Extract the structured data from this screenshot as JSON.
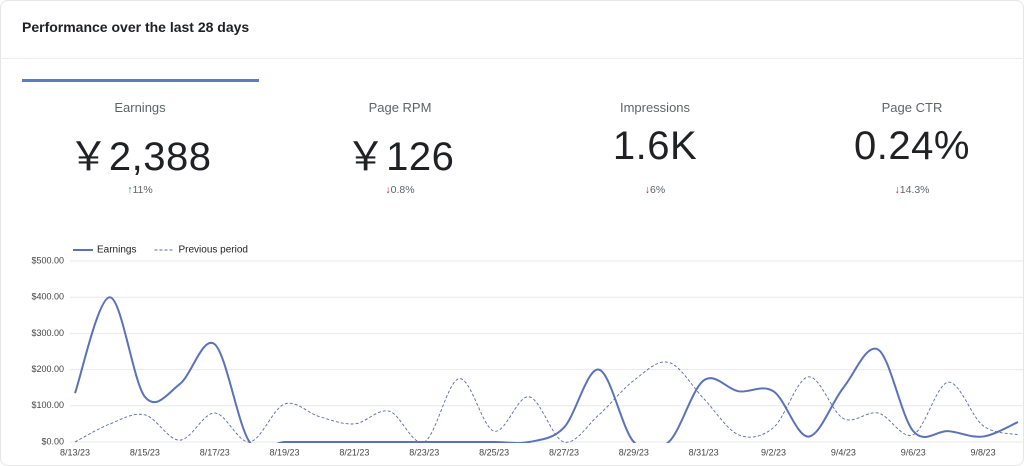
{
  "header": {
    "title": "Performance over the last 28 days"
  },
  "metrics": [
    {
      "label": "Earnings",
      "value": "￥2,388",
      "change": "11%",
      "trend": "up"
    },
    {
      "label": "Page RPM",
      "value": "￥126",
      "change": "0.8%",
      "trend": "down"
    },
    {
      "label": "Impressions",
      "value": "1.6K",
      "change": "6%",
      "trend": "down"
    },
    {
      "label": "Page CTR",
      "value": "0.24%",
      "change": "14.3%",
      "trend": "down"
    }
  ],
  "chart_data": {
    "type": "line",
    "categories": [
      "8/13/23",
      null,
      "8/15/23",
      null,
      "8/17/23",
      null,
      "8/19/23",
      null,
      "8/21/23",
      null,
      "8/23/23",
      null,
      "8/25/23",
      null,
      "8/27/23",
      null,
      "8/29/23",
      null,
      "8/31/23",
      null,
      "9/2/23",
      null,
      "9/4/23",
      null,
      "9/6/23",
      null,
      "9/8/23",
      null
    ],
    "series": [
      {
        "name": "Earnings",
        "color": "#5c72b8",
        "dashed": false,
        "values": [
          135,
          400,
          125,
          160,
          270,
          0,
          0,
          0,
          0,
          0,
          0,
          0,
          0,
          0,
          40,
          200,
          0,
          0,
          170,
          140,
          140,
          15,
          150,
          255,
          30,
          30,
          15,
          55
        ]
      },
      {
        "name": "Previous period",
        "color": "#5a6aa0",
        "dashed": true,
        "values": [
          0,
          50,
          75,
          5,
          80,
          0,
          105,
          70,
          50,
          85,
          0,
          175,
          30,
          125,
          0,
          75,
          170,
          220,
          120,
          20,
          40,
          180,
          65,
          80,
          20,
          165,
          45,
          20
        ]
      }
    ],
    "ylim": [
      0,
      500
    ],
    "yticks": [
      {
        "value": 0,
        "label": "$0.00"
      },
      {
        "value": 100,
        "label": "$100.00"
      },
      {
        "value": 200,
        "label": "$200.00"
      },
      {
        "value": 300,
        "label": "$300.00"
      },
      {
        "value": 400,
        "label": "$400.00"
      },
      {
        "value": 500,
        "label": "$500.00"
      }
    ],
    "grid": true
  }
}
